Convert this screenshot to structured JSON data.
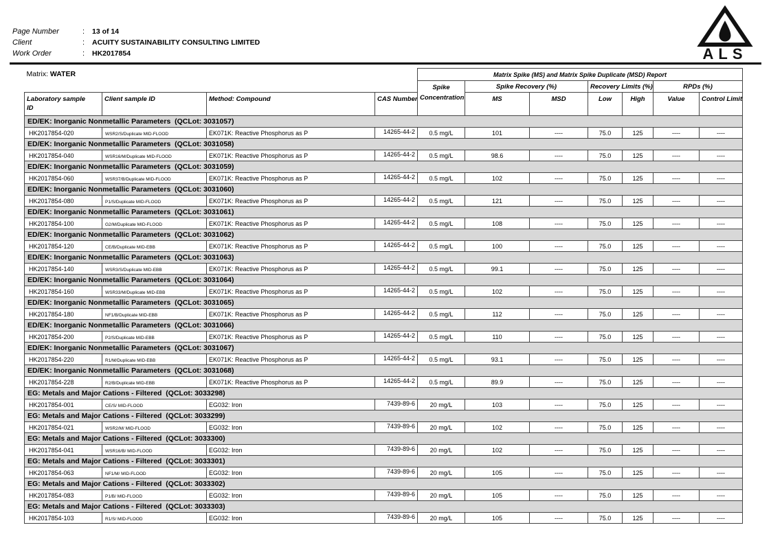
{
  "page": {
    "colon": ":",
    "fields": [
      {
        "label": "Page Number",
        "value": "13 of 14"
      },
      {
        "label": "Client",
        "value": "ACUITY SUSTAINABILITY CONSULTING LIMITED"
      },
      {
        "label": "Work Order",
        "value": "HK2017854"
      }
    ],
    "logo": "ALS",
    "matrix_label": "Matrix: ",
    "matrix_value": "WATER"
  },
  "table": {
    "report_title": "Matrix Spike (MS) and Matrix Spike Duplicate (MSD) Report",
    "headers": {
      "lab_sample_line1": "Laboratory sample",
      "lab_sample_line2": "ID",
      "client_sample": "Client sample ID",
      "method": "Method: Compound",
      "cas": "CAS Number",
      "spike_line1": "Spike",
      "spike_line2": "Concentration",
      "spike_recovery": "Spike Recovery (%)",
      "recovery_limits": "Recovery Limits (%)",
      "rpds": "RPDs (%)",
      "ms": "MS",
      "msd": "MSD",
      "low": "Low",
      "high": "High",
      "value": "Value",
      "control_limit": "Control Limit"
    },
    "groups": [
      {
        "title": "ED/EK: Inorganic Nonmetallic Parameters  (QCLot: 3031057)",
        "rows": [
          {
            "lab_id": "HK2017854-020",
            "client_id": "WSR2/S/Duplicate MID-FLOOD",
            "method": "EK071K: Reactive Phosphorus as P",
            "cas": "14265-44-2",
            "spike": "0.5 mg/L",
            "ms": "101",
            "msd": "----",
            "low": "75.0",
            "high": "125",
            "rpd_value": "----",
            "rpd_control": "----"
          }
        ]
      },
      {
        "title": "ED/EK: Inorganic Nonmetallic Parameters  (QCLot: 3031058)",
        "rows": [
          {
            "lab_id": "HK2017854-040",
            "client_id": "WSR16/M/Duplicate MID-FLOOD",
            "method": "EK071K: Reactive Phosphorus as P",
            "cas": "14265-44-2",
            "spike": "0.5 mg/L",
            "ms": "98.6",
            "msd": "----",
            "low": "75.0",
            "high": "125",
            "rpd_value": "----",
            "rpd_control": "----"
          }
        ]
      },
      {
        "title": "ED/EK: Inorganic Nonmetallic Parameters  (QCLot: 3031059)",
        "rows": [
          {
            "lab_id": "HK2017854-060",
            "client_id": "WSR37/B/Duplicate MID-FLOOD",
            "method": "EK071K: Reactive Phosphorus as P",
            "cas": "14265-44-2",
            "spike": "0.5 mg/L",
            "ms": "102",
            "msd": "----",
            "low": "75.0",
            "high": "125",
            "rpd_value": "----",
            "rpd_control": "----"
          }
        ]
      },
      {
        "title": "ED/EK: Inorganic Nonmetallic Parameters  (QCLot: 3031060)",
        "rows": [
          {
            "lab_id": "HK2017854-080",
            "client_id": "P1/S/Duplicate MID-FLOOD",
            "method": "EK071K: Reactive Phosphorus as P",
            "cas": "14265-44-2",
            "spike": "0.5 mg/L",
            "ms": "121",
            "msd": "----",
            "low": "75.0",
            "high": "125",
            "rpd_value": "----",
            "rpd_control": "----"
          }
        ]
      },
      {
        "title": "ED/EK: Inorganic Nonmetallic Parameters  (QCLot: 3031061)",
        "rows": [
          {
            "lab_id": "HK2017854-100",
            "client_id": "G2/M/Duplicate MID-FLOOD",
            "method": "EK071K: Reactive Phosphorus as P",
            "cas": "14265-44-2",
            "spike": "0.5 mg/L",
            "ms": "108",
            "msd": "----",
            "low": "75.0",
            "high": "125",
            "rpd_value": "----",
            "rpd_control": "----"
          }
        ]
      },
      {
        "title": "ED/EK: Inorganic Nonmetallic Parameters  (QCLot: 3031062)",
        "rows": [
          {
            "lab_id": "HK2017854-120",
            "client_id": "CE/B/Duplicate MID-EBB",
            "method": "EK071K: Reactive Phosphorus as P",
            "cas": "14265-44-2",
            "spike": "0.5 mg/L",
            "ms": "100",
            "msd": "----",
            "low": "75.0",
            "high": "125",
            "rpd_value": "----",
            "rpd_control": "----"
          }
        ]
      },
      {
        "title": "ED/EK: Inorganic Nonmetallic Parameters  (QCLot: 3031063)",
        "rows": [
          {
            "lab_id": "HK2017854-140",
            "client_id": "WSR3/S/Duplicate MID-EBB",
            "method": "EK071K: Reactive Phosphorus as P",
            "cas": "14265-44-2",
            "spike": "0.5 mg/L",
            "ms": "99.1",
            "msd": "----",
            "low": "75.0",
            "high": "125",
            "rpd_value": "----",
            "rpd_control": "----"
          }
        ]
      },
      {
        "title": "ED/EK: Inorganic Nonmetallic Parameters  (QCLot: 3031064)",
        "rows": [
          {
            "lab_id": "HK2017854-160",
            "client_id": "WSR33/M/Duplicate MID-EBB",
            "method": "EK071K: Reactive Phosphorus as P",
            "cas": "14265-44-2",
            "spike": "0.5 mg/L",
            "ms": "102",
            "msd": "----",
            "low": "75.0",
            "high": "125",
            "rpd_value": "----",
            "rpd_control": "----"
          }
        ]
      },
      {
        "title": "ED/EK: Inorganic Nonmetallic Parameters  (QCLot: 3031065)",
        "rows": [
          {
            "lab_id": "HK2017854-180",
            "client_id": "NF1/B/Duplicate MID-EBB",
            "method": "EK071K: Reactive Phosphorus as P",
            "cas": "14265-44-2",
            "spike": "0.5 mg/L",
            "ms": "112",
            "msd": "----",
            "low": "75.0",
            "high": "125",
            "rpd_value": "----",
            "rpd_control": "----"
          }
        ]
      },
      {
        "title": "ED/EK: Inorganic Nonmetallic Parameters  (QCLot: 3031066)",
        "rows": [
          {
            "lab_id": "HK2017854-200",
            "client_id": "P2/S/Duplicate MID-EBB",
            "method": "EK071K: Reactive Phosphorus as P",
            "cas": "14265-44-2",
            "spike": "0.5 mg/L",
            "ms": "110",
            "msd": "----",
            "low": "75.0",
            "high": "125",
            "rpd_value": "----",
            "rpd_control": "----"
          }
        ]
      },
      {
        "title": "ED/EK: Inorganic Nonmetallic Parameters  (QCLot: 3031067)",
        "rows": [
          {
            "lab_id": "HK2017854-220",
            "client_id": "R1/M/Duplicate MID-EBB",
            "method": "EK071K: Reactive Phosphorus as P",
            "cas": "14265-44-2",
            "spike": "0.5 mg/L",
            "ms": "93.1",
            "msd": "----",
            "low": "75.0",
            "high": "125",
            "rpd_value": "----",
            "rpd_control": "----"
          }
        ]
      },
      {
        "title": "ED/EK: Inorganic Nonmetallic Parameters  (QCLot: 3031068)",
        "rows": [
          {
            "lab_id": "HK2017854-228",
            "client_id": "R2/B/Duplicate MID-EBB",
            "method": "EK071K: Reactive Phosphorus as P",
            "cas": "14265-44-2",
            "spike": "0.5 mg/L",
            "ms": "89.9",
            "msd": "----",
            "low": "75.0",
            "high": "125",
            "rpd_value": "----",
            "rpd_control": "----"
          }
        ]
      },
      {
        "title": "EG: Metals and Major Cations - Filtered  (QCLot: 3033298)",
        "rows": [
          {
            "lab_id": "HK2017854-001",
            "client_id": "CE/S/ MID-FLOOD",
            "method": "EG032: Iron",
            "cas": "7439-89-6",
            "spike": "20 mg/L",
            "ms": "103",
            "msd": "----",
            "low": "75.0",
            "high": "125",
            "rpd_value": "----",
            "rpd_control": "----"
          }
        ]
      },
      {
        "title": "EG: Metals and Major Cations - Filtered  (QCLot: 3033299)",
        "rows": [
          {
            "lab_id": "HK2017854-021",
            "client_id": "WSR2/M/ MID-FLOOD",
            "method": "EG032: Iron",
            "cas": "7439-89-6",
            "spike": "20 mg/L",
            "ms": "102",
            "msd": "----",
            "low": "75.0",
            "high": "125",
            "rpd_value": "----",
            "rpd_control": "----"
          }
        ]
      },
      {
        "title": "EG: Metals and Major Cations - Filtered  (QCLot: 3033300)",
        "rows": [
          {
            "lab_id": "HK2017854-041",
            "client_id": "WSR16/B/ MID-FLOOD",
            "method": "EG032: Iron",
            "cas": "7439-89-6",
            "spike": "20 mg/L",
            "ms": "102",
            "msd": "----",
            "low": "75.0",
            "high": "125",
            "rpd_value": "----",
            "rpd_control": "----"
          }
        ]
      },
      {
        "title": "EG: Metals and Major Cations - Filtered  (QCLot: 3033301)",
        "rows": [
          {
            "lab_id": "HK2017854-063",
            "client_id": "NF1/M/ MID-FLOOD",
            "method": "EG032: Iron",
            "cas": "7439-89-6",
            "spike": "20 mg/L",
            "ms": "105",
            "msd": "----",
            "low": "75.0",
            "high": "125",
            "rpd_value": "----",
            "rpd_control": "----"
          }
        ]
      },
      {
        "title": "EG: Metals and Major Cations - Filtered  (QCLot: 3033302)",
        "rows": [
          {
            "lab_id": "HK2017854-083",
            "client_id": "P1/B/ MID-FLOOD",
            "method": "EG032: Iron",
            "cas": "7439-89-6",
            "spike": "20 mg/L",
            "ms": "105",
            "msd": "----",
            "low": "75.0",
            "high": "125",
            "rpd_value": "----",
            "rpd_control": "----"
          }
        ]
      },
      {
        "title": "EG: Metals and Major Cations - Filtered  (QCLot: 3033303)",
        "rows": [
          {
            "lab_id": "HK2017854-103",
            "client_id": "R1/S/ MID-FLOOD",
            "method": "EG032: Iron",
            "cas": "7439-89-6",
            "spike": "20 mg/L",
            "ms": "105",
            "msd": "----",
            "low": "75.0",
            "high": "125",
            "rpd_value": "----",
            "rpd_control": "----"
          }
        ]
      }
    ]
  }
}
